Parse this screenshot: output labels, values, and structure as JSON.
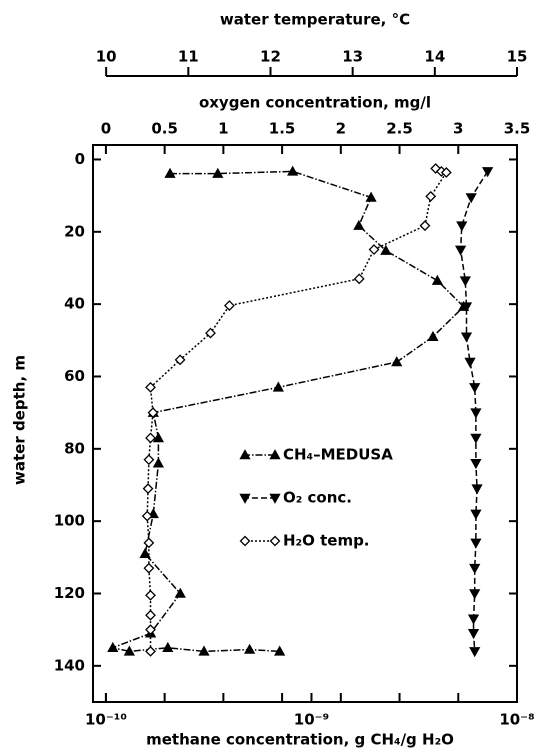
{
  "chart_data": {
    "type": "line",
    "ylabel": "water depth,  m",
    "ylim": [
      -4,
      150
    ],
    "y_inverted": true,
    "yticks": [
      0,
      20,
      40,
      60,
      80,
      100,
      120,
      140
    ],
    "x_axes": [
      {
        "label": "water temperature, °C",
        "position": "top-outer",
        "lim": [
          9.84,
          15
        ],
        "ticks": [
          10,
          11,
          12,
          13,
          14,
          15
        ],
        "log": false
      },
      {
        "label": "oxygen concentration, mg/l",
        "position": "top",
        "lim": [
          -0.11,
          3.5
        ],
        "ticks": [
          0,
          0.5,
          1,
          1.5,
          2,
          2.5,
          3,
          3.5
        ],
        "log": false
      },
      {
        "label": "methane concentration,  g CH₄/g H₂O",
        "position": "bottom",
        "lim": [
          8.65e-11,
          1e-08
        ],
        "ticks": [
          {
            "value": 1e-10,
            "label": "10⁻¹⁰"
          },
          {
            "value": 1e-09,
            "label": "10⁻⁹"
          },
          {
            "value": 1e-08,
            "label": "10⁻⁸"
          }
        ],
        "log": true
      }
    ],
    "legend": "center",
    "series": [
      {
        "name": "CH₄–MEDUSA",
        "axis": 2,
        "marker": "triangle-up",
        "dash": "7 2 1.5 2",
        "color": "#000000",
        "x": [
          2.05e-10,
          3.5e-10,
          8.1e-10,
          1.95e-09,
          1.7e-09,
          2.3e-09,
          4.1e-09,
          5.5e-09,
          3.9e-09,
          2.6e-09,
          6.9e-10,
          1.7e-10,
          1.8e-10,
          1.8e-10,
          1.7e-10,
          1.55e-10,
          2.3e-10,
          1.65e-10,
          1.08e-10,
          1.3e-10,
          2e-10,
          3e-10,
          5e-10,
          7e-10
        ],
        "y": [
          3.9,
          3.9,
          3.3,
          10.5,
          18.3,
          25.2,
          33.5,
          40.7,
          49,
          56,
          63,
          70,
          77,
          84,
          98,
          109,
          120,
          131,
          135,
          136,
          135,
          136,
          135.5,
          136
        ]
      },
      {
        "name": "O₂ conc.",
        "axis": 1,
        "marker": "triangle-down",
        "dash": "6 3",
        "color": "#000000",
        "x": [
          3.25,
          3.11,
          3.03,
          3.02,
          3.06,
          3.07,
          3.07,
          3.1,
          3.14,
          3.15,
          3.15,
          3.15,
          3.16,
          3.15,
          3.15,
          3.14,
          3.14,
          3.13,
          3.13,
          3.14
        ],
        "y": [
          3.3,
          10.5,
          18.3,
          25,
          33.5,
          40.7,
          49,
          56,
          63,
          70,
          77,
          84,
          91,
          98,
          106,
          113,
          120,
          127,
          131,
          136
        ]
      },
      {
        "name": "H₂O temp.",
        "axis": 0,
        "marker": "diamond",
        "dash": "2 2",
        "color": "#000000",
        "x": [
          14.01,
          14.08,
          14.14,
          13.95,
          13.88,
          13.26,
          13.08,
          11.5,
          11.27,
          10.9,
          10.54,
          10.57,
          10.54,
          10.52,
          10.51,
          10.5,
          10.52,
          10.52,
          10.54,
          10.54,
          10.54,
          10.54
        ],
        "y": [
          2.5,
          3.3,
          3.6,
          10.2,
          18.3,
          24.9,
          33,
          40.4,
          48,
          55.4,
          63,
          70,
          77,
          83,
          91,
          98.6,
          106,
          113,
          120.5,
          126,
          130,
          136
        ]
      }
    ]
  }
}
